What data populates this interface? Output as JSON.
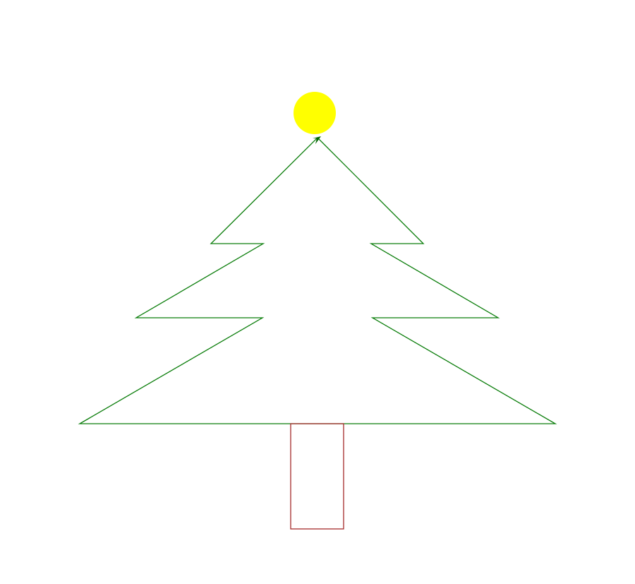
{
  "drawing": {
    "subject": "christmas-tree",
    "colors": {
      "tree_outline": "#0a7d0a",
      "trunk_outline": "#a52a2a",
      "star": "#ffff00",
      "turtle_cursor": "#006400",
      "background": "#ffffff"
    }
  }
}
